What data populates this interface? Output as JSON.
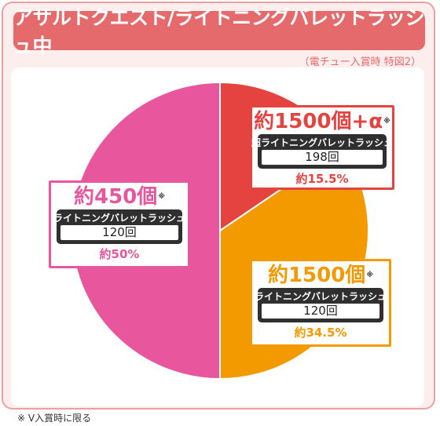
{
  "title": "アサルトクエスト/ライトニングバレットラッシュ中",
  "subtitle": "（電チュー入賞時 特図2）",
  "footnote": "※ V入賞時に限る",
  "colors": {
    "red": "#e4433f",
    "orange": "#f29a00",
    "pink": "#e8569d",
    "title_bg": "#e56a6c"
  },
  "chart_data": {
    "type": "pie",
    "title": "アサルトクエスト/ライトニングバレットラッシュ中",
    "subtitle": "（電チュー入賞時 特図2）",
    "start": "top",
    "direction": "clockwise",
    "slices": [
      {
        "label": "約1500個+α",
        "marker": "※",
        "mode": "超ライトニングバレットラッシュ",
        "count": "198回",
        "value": 15.5,
        "percent_label": "約15.5%",
        "color": "#e4433f"
      },
      {
        "label": "約1500個",
        "marker": "※",
        "mode": "ライトニングバレットラッシュ",
        "count": "120回",
        "value": 34.5,
        "percent_label": "約34.5%",
        "color": "#f29a00"
      },
      {
        "label": "約450個",
        "marker": "※",
        "mode": "ライトニングバレットラッシュ",
        "count": "120回",
        "value": 50,
        "percent_label": "約50%",
        "color": "#e8569d"
      }
    ]
  }
}
